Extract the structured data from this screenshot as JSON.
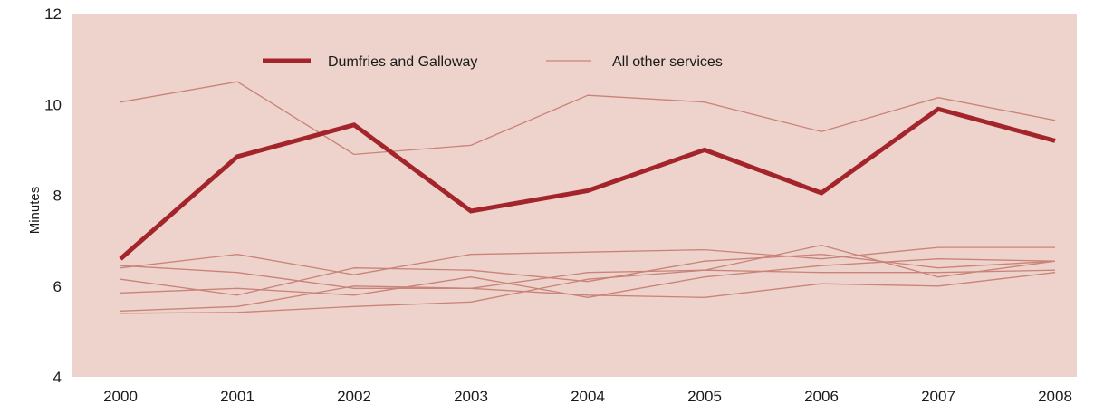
{
  "chart_data": {
    "type": "line",
    "title": "",
    "xlabel": "",
    "ylabel": "Minutes",
    "x": [
      2000,
      2001,
      2002,
      2003,
      2004,
      2005,
      2006,
      2007,
      2008
    ],
    "x_tick_labels": [
      "2000",
      "2001",
      "2002",
      "2003",
      "2004",
      "2005",
      "2006",
      "2007",
      "2008"
    ],
    "ylim": [
      4,
      12
    ],
    "y_ticks": [
      4,
      6,
      8,
      10,
      12
    ],
    "y_tick_labels": [
      "4",
      "6",
      "8",
      "10",
      "12"
    ],
    "grid": false,
    "legend": {
      "placement": "top",
      "entries": [
        {
          "label": "Dumfries and Galloway",
          "series": "highlight"
        },
        {
          "label": "All other services",
          "series": "others"
        }
      ]
    },
    "colors": {
      "background": "#edd3cb",
      "highlight": "#a3242a",
      "others": "#c98378"
    },
    "highlight_series": {
      "name": "Dumfries and Galloway",
      "values": [
        6.6,
        8.85,
        9.55,
        7.65,
        8.1,
        9.0,
        8.05,
        9.9,
        9.2
      ]
    },
    "other_series": [
      {
        "values": [
          10.05,
          10.5,
          8.9,
          9.1,
          10.2,
          10.05,
          9.4,
          10.15,
          9.65
        ]
      },
      {
        "values": [
          6.4,
          6.7,
          6.25,
          6.7,
          6.75,
          6.8,
          6.6,
          6.85,
          6.85
        ]
      },
      {
        "values": [
          6.45,
          6.3,
          5.95,
          5.95,
          6.3,
          6.35,
          6.9,
          6.2,
          6.55
        ]
      },
      {
        "values": [
          6.15,
          5.8,
          6.4,
          6.35,
          6.1,
          6.55,
          6.7,
          6.4,
          6.55
        ]
      },
      {
        "values": [
          5.85,
          5.95,
          5.8,
          6.2,
          5.75,
          6.2,
          6.45,
          6.6,
          6.55
        ]
      },
      {
        "values": [
          5.45,
          5.55,
          6.0,
          5.95,
          5.8,
          5.75,
          6.05,
          6.0,
          6.3
        ]
      },
      {
        "values": [
          5.4,
          5.42,
          5.55,
          5.65,
          6.15,
          6.35,
          6.3,
          6.3,
          6.35
        ]
      }
    ]
  }
}
